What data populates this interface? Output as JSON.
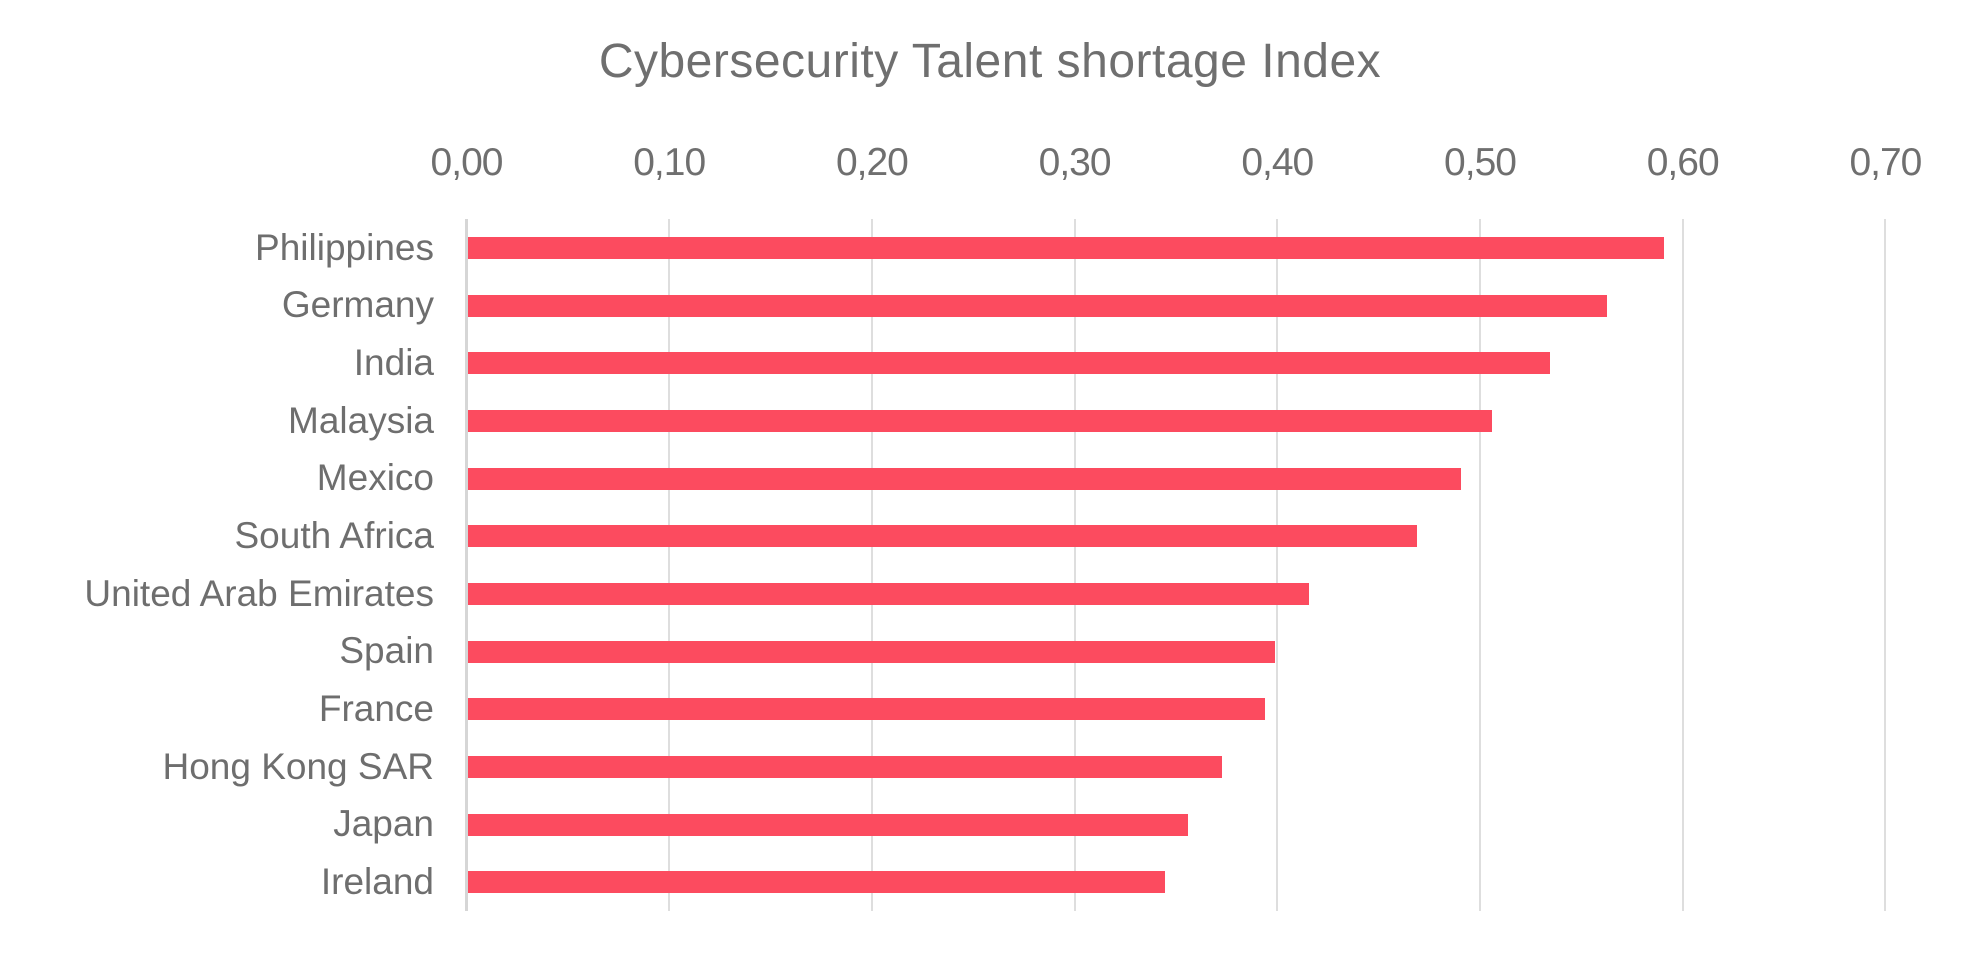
{
  "chart_data": {
    "type": "bar",
    "orientation": "horizontal",
    "title": "Cybersecurity Talent shortage Index",
    "categories": [
      "Philippines",
      "Germany",
      "India",
      "Malaysia",
      "Mexico",
      "South Africa",
      "United Arab Emirates",
      "Spain",
      "France",
      "Hong Kong SAR",
      "Japan",
      "Ireland"
    ],
    "values": [
      0.59,
      0.562,
      0.534,
      0.505,
      0.49,
      0.468,
      0.415,
      0.398,
      0.393,
      0.372,
      0.355,
      0.344
    ],
    "x_tick_labels": [
      "0,00",
      "0,10",
      "0,20",
      "0,30",
      "0,40",
      "0,50",
      "0,60",
      "0,70"
    ],
    "x_tick_values": [
      0.0,
      0.1,
      0.2,
      0.3,
      0.4,
      0.5,
      0.6,
      0.7
    ],
    "xlim": [
      0.0,
      0.7
    ],
    "decimal_separator": ",",
    "grid": true,
    "legend": "none",
    "axis_position": "top",
    "colors": {
      "bar": "#FC4B5F",
      "grid": "#DEDEDE",
      "axis_line": "#D6D6D6",
      "text": "#6E6E6E",
      "background": "#FFFFFF"
    }
  }
}
